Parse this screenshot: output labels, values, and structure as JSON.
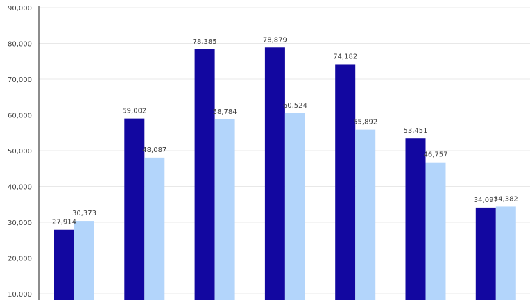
{
  "chart_data": {
    "type": "bar",
    "title": "",
    "xlabel": "",
    "ylabel": "",
    "ylim": [
      10000,
      90000
    ],
    "y_ticks": [
      10000,
      20000,
      30000,
      40000,
      50000,
      60000,
      70000,
      80000,
      90000
    ],
    "y_tick_labels": [
      "10,000",
      "20,000",
      "30,000",
      "40,000",
      "50,000",
      "60,000",
      "70,000",
      "80,000",
      "90,000"
    ],
    "categories": [
      "",
      "",
      "",
      "",
      "",
      "",
      ""
    ],
    "grid": true,
    "legend": "none",
    "series": [
      {
        "color": "#1207a0",
        "values": [
          27914,
          59002,
          78385,
          78879,
          74182,
          53451,
          34097
        ],
        "labels": [
          "27,914",
          "59,002",
          "78,385",
          "78,879",
          "74,182",
          "53,451",
          "34,097"
        ]
      },
      {
        "color": "#b3d5fb",
        "values": [
          30373,
          48087,
          58784,
          60524,
          55892,
          46757,
          34382
        ],
        "labels": [
          "30,373",
          "48,087",
          "58,784",
          "60,524",
          "55,892",
          "46,757",
          "34,382"
        ]
      }
    ]
  }
}
